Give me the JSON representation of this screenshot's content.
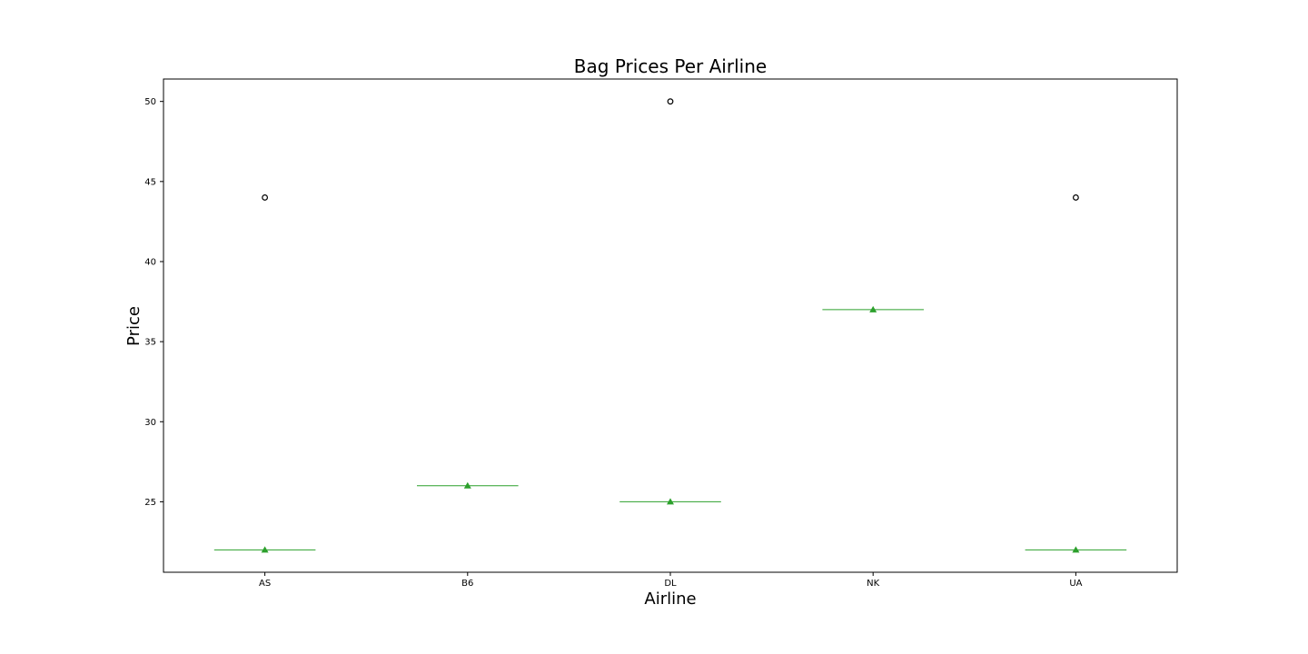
{
  "chart_data": {
    "type": "box",
    "title": "Bag Prices Per Airline",
    "xlabel": "Airline",
    "ylabel": "Price",
    "categories": [
      "AS",
      "B6",
      "DL",
      "NK",
      "UA"
    ],
    "ylim": [
      20.6,
      51.4
    ],
    "yticks": [
      25,
      30,
      35,
      40,
      45,
      50
    ],
    "grid": false,
    "boxes": [
      {
        "category": "AS",
        "median": 22,
        "mean": 22,
        "outliers": [
          44
        ]
      },
      {
        "category": "B6",
        "median": 26,
        "mean": 26,
        "outliers": []
      },
      {
        "category": "DL",
        "median": 25,
        "mean": 25,
        "outliers": [
          50
        ]
      },
      {
        "category": "NK",
        "median": 37,
        "mean": 37,
        "outliers": []
      },
      {
        "category": "UA",
        "median": 22,
        "mean": 22,
        "outliers": [
          44
        ]
      }
    ],
    "colors": {
      "median": "#2ca02c",
      "mean_marker": "#2ca02c",
      "outlier_edge": "#000000",
      "axes": "#000000"
    }
  }
}
